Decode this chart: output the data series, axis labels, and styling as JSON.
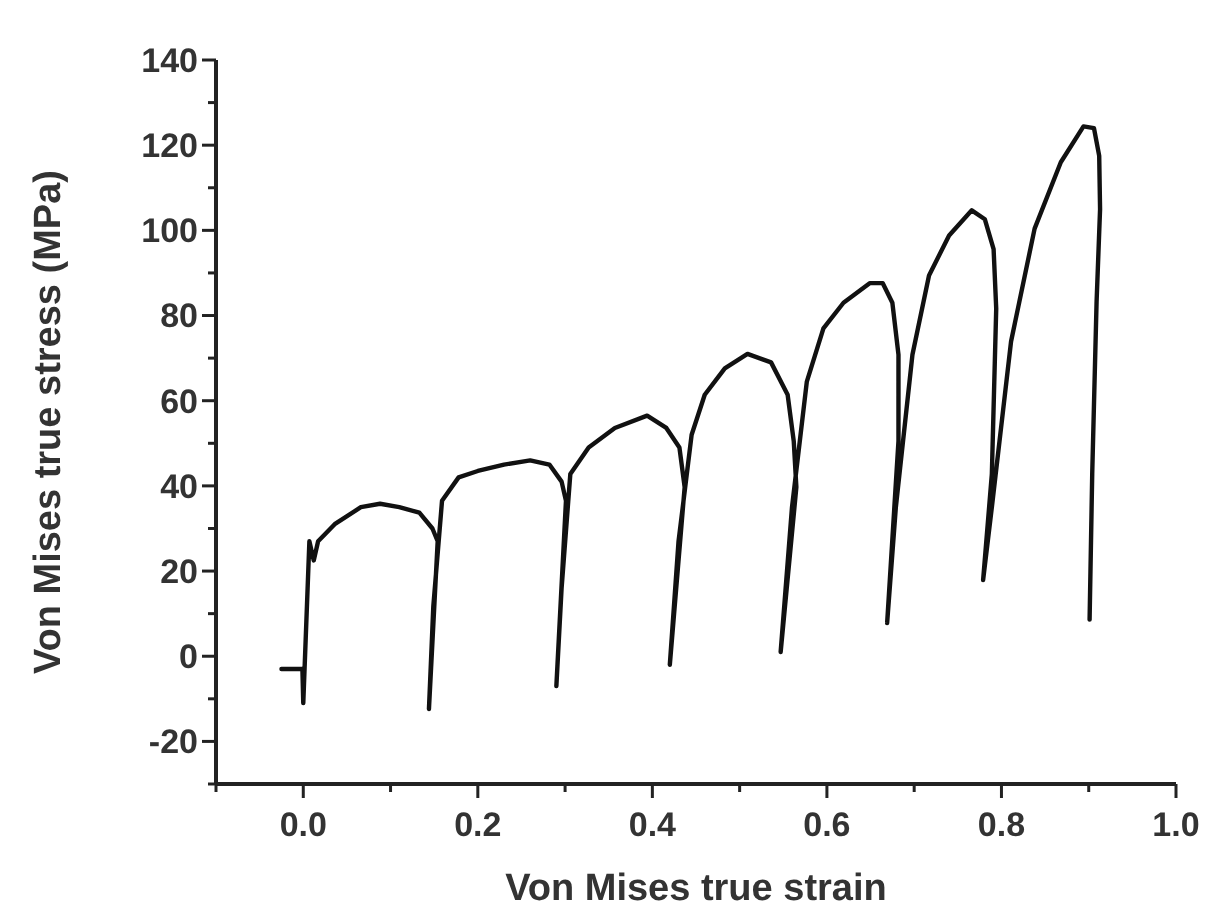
{
  "chart_data": {
    "type": "line",
    "xlabel": "Von Mises true strain",
    "ylabel": "Von Mises true stress (MPa)",
    "xlim": [
      -0.1,
      1.0
    ],
    "ylim": [
      -30,
      140
    ],
    "xticks": [
      {
        "value": -0.1,
        "label": null
      },
      {
        "value": 0.0,
        "label": "0.0"
      },
      {
        "value": 0.1,
        "label": null
      },
      {
        "value": 0.2,
        "label": "0.2"
      },
      {
        "value": 0.3,
        "label": null
      },
      {
        "value": 0.4,
        "label": "0.4"
      },
      {
        "value": 0.5,
        "label": null
      },
      {
        "value": 0.6,
        "label": "0.6"
      },
      {
        "value": 0.7,
        "label": null
      },
      {
        "value": 0.8,
        "label": "0.8"
      },
      {
        "value": 0.9,
        "label": null
      },
      {
        "value": 1.0,
        "label": "1.0"
      }
    ],
    "yticks": [
      {
        "value": -30,
        "label": null
      },
      -20,
      {
        "value": -10,
        "label": null
      },
      0,
      {
        "value": 10,
        "label": null
      },
      20,
      {
        "value": 30,
        "label": null
      },
      40,
      {
        "value": 50,
        "label": null
      },
      60,
      {
        "value": 70,
        "label": null
      },
      80,
      {
        "value": 90,
        "label": null
      },
      100,
      {
        "value": 110,
        "label": null
      },
      120,
      {
        "value": 130,
        "label": null
      },
      140
    ],
    "grid": false,
    "marker": "none",
    "line_style": "solid",
    "series": [
      {
        "color": "#111111",
        "x": [
          -0.025,
          -0.001,
          0.0,
          0.007,
          0.012,
          0.017,
          0.036,
          0.066,
          0.088,
          0.11,
          0.133,
          0.148,
          0.154,
          0.144,
          0.149,
          0.159,
          0.178,
          0.2,
          0.23,
          0.26,
          0.282,
          0.296,
          0.301,
          0.29,
          0.296,
          0.306,
          0.327,
          0.357,
          0.394,
          0.416,
          0.431,
          0.437,
          0.42,
          0.43,
          0.445,
          0.46,
          0.483,
          0.509,
          0.536,
          0.555,
          0.562,
          0.565,
          0.547,
          0.56,
          0.577,
          0.596,
          0.619,
          0.649,
          0.664,
          0.675,
          0.682,
          0.682,
          0.669,
          0.679,
          0.698,
          0.717,
          0.74,
          0.766,
          0.781,
          0.791,
          0.794,
          0.789,
          0.779,
          0.789,
          0.811,
          0.838,
          0.868,
          0.894,
          0.906,
          0.912,
          0.913,
          0.909,
          0.904,
          0.901
        ],
        "values": [
          -3,
          -3,
          -11,
          27,
          22.5,
          27,
          31,
          35,
          35.8,
          35,
          33.7,
          30,
          27,
          -12.4,
          11.7,
          36.5,
          42,
          43.5,
          45,
          46,
          45,
          41,
          36.5,
          -7,
          16,
          42.8,
          49,
          53.6,
          56.5,
          53.6,
          49,
          39.7,
          -2,
          27,
          52,
          61.4,
          67.6,
          71,
          69,
          61.4,
          50.5,
          39.7,
          1,
          35,
          64.5,
          77,
          83,
          87.6,
          87.6,
          83,
          70.8,
          50.5,
          7.8,
          35,
          70.8,
          89.4,
          98.8,
          104.7,
          102.6,
          95.6,
          81.6,
          42.8,
          17.9,
          35,
          73.9,
          100.4,
          116,
          124.4,
          124,
          117.5,
          105,
          83.2,
          42.8,
          8.6
        ]
      }
    ]
  }
}
